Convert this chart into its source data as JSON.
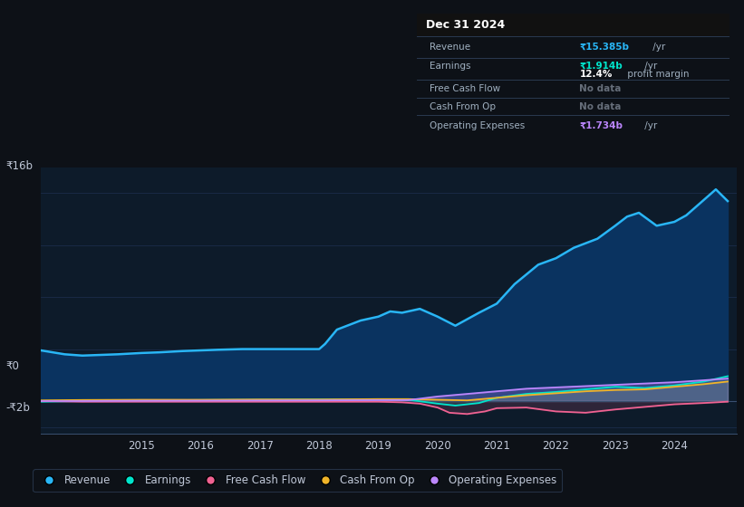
{
  "background_color": "#0d1117",
  "plot_bg_color": "#0d1b2a",
  "grid_color": "#1e3050",
  "text_color": "#c0c8d8",
  "title_text": "Dec 31 2024",
  "ylabel_top": "₹16b",
  "ylabel_zero": "₹0",
  "ylabel_neg": "-₹2b",
  "x_ticks": [
    2015,
    2016,
    2017,
    2018,
    2019,
    2020,
    2021,
    2022,
    2023,
    2024
  ],
  "ylim": [
    -2.5,
    18.0
  ],
  "legend_items": [
    {
      "label": "Revenue",
      "color": "#29b6f6"
    },
    {
      "label": "Earnings",
      "color": "#00e5cc"
    },
    {
      "label": "Free Cash Flow",
      "color": "#f06292"
    },
    {
      "label": "Cash From Op",
      "color": "#f0b429"
    },
    {
      "label": "Operating Expenses",
      "color": "#bb86fc"
    }
  ],
  "revenue_color": "#29b6f6",
  "revenue_fill": "#0a3360",
  "earnings_color": "#00e5cc",
  "fcf_color": "#f06292",
  "cashfromop_color": "#f0b429",
  "opex_color": "#bb86fc",
  "revenue": {
    "years": [
      2013.3,
      2013.7,
      2014.0,
      2014.3,
      2014.6,
      2015.0,
      2015.3,
      2015.7,
      2016.0,
      2016.3,
      2016.7,
      2017.0,
      2017.3,
      2017.7,
      2018.0,
      2018.1,
      2018.3,
      2018.7,
      2019.0,
      2019.2,
      2019.4,
      2019.7,
      2020.0,
      2020.3,
      2020.7,
      2021.0,
      2021.3,
      2021.7,
      2022.0,
      2022.3,
      2022.7,
      2023.0,
      2023.2,
      2023.4,
      2023.7,
      2024.0,
      2024.2,
      2024.5,
      2024.7,
      2024.9
    ],
    "values": [
      3.9,
      3.6,
      3.5,
      3.55,
      3.6,
      3.7,
      3.75,
      3.85,
      3.9,
      3.95,
      4.0,
      4.0,
      4.0,
      4.0,
      4.0,
      4.4,
      5.5,
      6.2,
      6.5,
      6.9,
      6.8,
      7.1,
      6.5,
      5.8,
      6.8,
      7.5,
      9.0,
      10.5,
      11.0,
      11.8,
      12.5,
      13.5,
      14.2,
      14.5,
      13.5,
      13.8,
      14.3,
      15.5,
      16.3,
      15.4
    ]
  },
  "earnings": {
    "years": [
      2013.3,
      2014.0,
      2015.0,
      2016.0,
      2017.0,
      2018.0,
      2019.0,
      2019.5,
      2020.0,
      2020.3,
      2020.7,
      2021.0,
      2021.5,
      2022.0,
      2022.5,
      2023.0,
      2023.5,
      2024.0,
      2024.5,
      2024.9
    ],
    "values": [
      -0.05,
      0.0,
      0.05,
      0.08,
      0.1,
      0.12,
      0.12,
      0.1,
      -0.2,
      -0.35,
      -0.15,
      0.25,
      0.55,
      0.7,
      0.9,
      1.1,
      1.0,
      1.2,
      1.5,
      1.914
    ]
  },
  "fcf": {
    "years": [
      2013.3,
      2014.0,
      2015.0,
      2016.0,
      2017.0,
      2018.0,
      2019.0,
      2019.4,
      2019.7,
      2020.0,
      2020.2,
      2020.5,
      2020.8,
      2021.0,
      2021.5,
      2022.0,
      2022.5,
      2023.0,
      2023.5,
      2024.0,
      2024.5,
      2024.9
    ],
    "values": [
      0.0,
      -0.05,
      -0.05,
      -0.05,
      -0.05,
      -0.05,
      -0.05,
      -0.1,
      -0.2,
      -0.5,
      -0.9,
      -1.0,
      -0.8,
      -0.55,
      -0.5,
      -0.8,
      -0.9,
      -0.65,
      -0.45,
      -0.25,
      -0.15,
      -0.05
    ]
  },
  "cashfromop": {
    "years": [
      2013.3,
      2014.0,
      2015.0,
      2016.0,
      2017.0,
      2018.0,
      2019.0,
      2019.5,
      2020.0,
      2020.5,
      2021.0,
      2021.5,
      2022.0,
      2022.5,
      2023.0,
      2023.5,
      2024.0,
      2024.5,
      2024.9
    ],
    "values": [
      0.05,
      0.08,
      0.1,
      0.1,
      0.12,
      0.12,
      0.15,
      0.15,
      0.1,
      0.05,
      0.25,
      0.45,
      0.6,
      0.75,
      0.85,
      0.9,
      1.1,
      1.3,
      1.5
    ]
  },
  "opex": {
    "years": [
      2013.3,
      2014.0,
      2015.0,
      2016.0,
      2017.0,
      2018.0,
      2019.0,
      2019.5,
      2020.0,
      2020.5,
      2021.0,
      2021.5,
      2022.0,
      2022.5,
      2023.0,
      2023.5,
      2024.0,
      2024.5,
      2024.9
    ],
    "values": [
      0.0,
      0.0,
      0.02,
      0.03,
      0.04,
      0.05,
      0.07,
      0.07,
      0.35,
      0.55,
      0.75,
      0.95,
      1.05,
      1.15,
      1.25,
      1.35,
      1.45,
      1.6,
      1.734
    ]
  }
}
